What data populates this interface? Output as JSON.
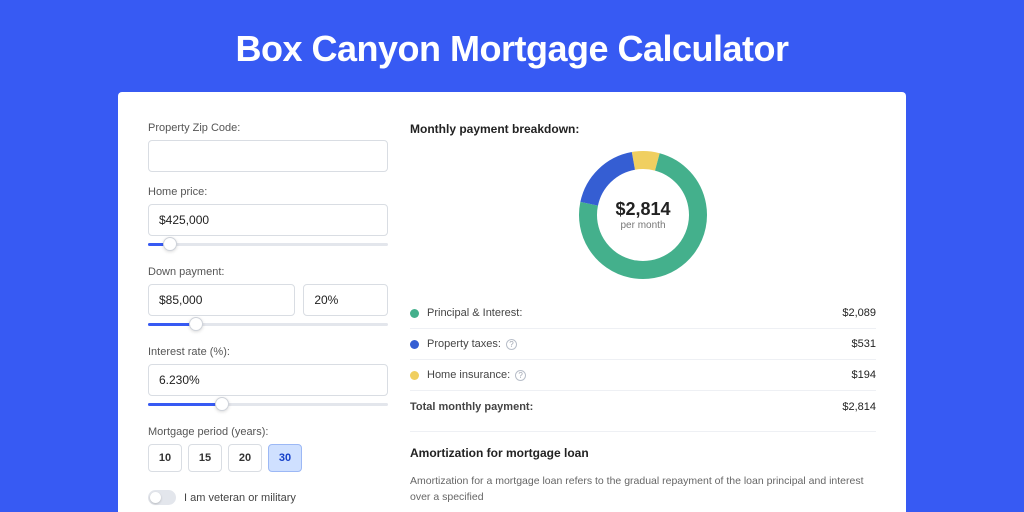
{
  "page_title": "Box Canyon Mortgage Calculator",
  "colors": {
    "background": "#375af3",
    "band": "#2d49c8",
    "card_bg": "#ffffff",
    "slider_fill": "#375af3",
    "swatch_pi": "#44b08c",
    "swatch_tax": "#355ed3",
    "swatch_ins": "#f0cf60"
  },
  "form": {
    "zip": {
      "label": "Property Zip Code:",
      "value": ""
    },
    "home_price": {
      "label": "Home price:",
      "value": "$425,000",
      "slider_pct": 9
    },
    "down_payment": {
      "label": "Down payment:",
      "amount": "$85,000",
      "pct": "20%",
      "slider_pct": 20
    },
    "interest": {
      "label": "Interest rate (%):",
      "value": "6.230%",
      "slider_pct": 31
    },
    "period": {
      "label": "Mortgage period (years):",
      "options": [
        "10",
        "15",
        "20",
        "30"
      ],
      "selected": "30"
    },
    "veteran": {
      "label": "I am veteran or military",
      "value": false
    }
  },
  "breakdown": {
    "title": "Monthly payment breakdown:",
    "donut_amount": "$2,814",
    "donut_sub": "per month",
    "donut": {
      "stroke_width": 18,
      "radius": 55,
      "segments": [
        {
          "key": "pi",
          "color": "#44b08c",
          "pct": 74.0
        },
        {
          "key": "tax",
          "color": "#355ed3",
          "pct": 19.0
        },
        {
          "key": "ins",
          "color": "#f0cf60",
          "pct": 7.0
        }
      ]
    },
    "rows": [
      {
        "label": "Principal & Interest:",
        "color": "#44b08c",
        "value": "$2,089",
        "help": false
      },
      {
        "label": "Property taxes:",
        "color": "#355ed3",
        "value": "$531",
        "help": true
      },
      {
        "label": "Home insurance:",
        "color": "#f0cf60",
        "value": "$194",
        "help": true
      }
    ],
    "total_label": "Total monthly payment:",
    "total_value": "$2,814"
  },
  "amortization": {
    "title": "Amortization for mortgage loan",
    "text": "Amortization for a mortgage loan refers to the gradual repayment of the loan principal and interest over a specified"
  }
}
